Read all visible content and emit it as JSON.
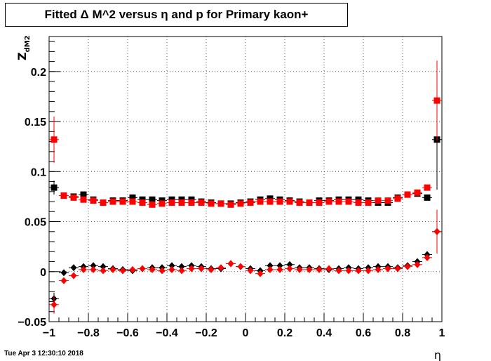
{
  "title": "Fitted Δ M^2 versus η and p for Primary kaon+",
  "timestamp": "Tue Apr  3 12:30:10 2018",
  "chart_data": {
    "type": "scatter",
    "title": "Fitted Δ M^2 versus η and p for Primary kaon+",
    "xlabel": "η",
    "ylabel": "Z_dM2",
    "xlim": [
      -1,
      1
    ],
    "ylim": [
      -0.05,
      0.235
    ],
    "grid": true,
    "x_ticks": [
      -1,
      -0.8,
      -0.6,
      -0.4,
      -0.2,
      0,
      0.2,
      0.4,
      0.6,
      0.8,
      1
    ],
    "x_tick_labels": [
      "−1",
      "−0.8",
      "−0.6",
      "−0.4",
      "−0.2",
      "0",
      "0.2",
      "0.4",
      "0.6",
      "0.8",
      "1"
    ],
    "y_ticks": [
      -0.05,
      0,
      0.05,
      0.1,
      0.15,
      0.2
    ],
    "y_tick_labels": [
      "−0.05",
      "0",
      "0.05",
      "0.1",
      "0.15",
      "0.2"
    ],
    "colors": {
      "black": "#000000",
      "red": "#ff0000"
    },
    "x": [
      -0.975,
      -0.925,
      -0.875,
      -0.825,
      -0.775,
      -0.725,
      -0.675,
      -0.625,
      -0.575,
      -0.525,
      -0.475,
      -0.425,
      -0.375,
      -0.325,
      -0.275,
      -0.225,
      -0.175,
      -0.125,
      -0.075,
      -0.025,
      0.025,
      0.075,
      0.125,
      0.175,
      0.225,
      0.275,
      0.325,
      0.375,
      0.425,
      0.475,
      0.525,
      0.575,
      0.625,
      0.675,
      0.725,
      0.775,
      0.825,
      0.875,
      0.925,
      0.975
    ],
    "series": [
      {
        "marker": "square",
        "color": "#000000",
        "values": [
          0.084,
          0.076,
          0.075,
          0.077,
          0.072,
          0.069,
          0.071,
          0.071,
          0.074,
          0.072,
          0.072,
          0.071,
          0.072,
          0.072,
          0.072,
          0.07,
          0.069,
          0.068,
          0.068,
          0.069,
          0.07,
          0.072,
          0.073,
          0.072,
          0.071,
          0.07,
          0.069,
          0.071,
          0.071,
          0.072,
          0.072,
          0.072,
          0.071,
          0.069,
          0.069,
          0.074,
          0.077,
          0.078,
          0.074,
          0.132
        ],
        "errors": [
          0.007,
          0.002,
          0.002,
          0.002,
          0.002,
          0.002,
          0.002,
          0.002,
          0.002,
          0.002,
          0.002,
          0.002,
          0.002,
          0.002,
          0.002,
          0.002,
          0.002,
          0.002,
          0.002,
          0.002,
          0.002,
          0.002,
          0.002,
          0.002,
          0.002,
          0.002,
          0.002,
          0.002,
          0.002,
          0.002,
          0.002,
          0.002,
          0.002,
          0.002,
          0.002,
          0.002,
          0.002,
          0.002,
          0.003,
          0.05
        ]
      },
      {
        "marker": "square",
        "color": "#ff0000",
        "values": [
          0.132,
          0.076,
          0.074,
          0.072,
          0.071,
          0.069,
          0.07,
          0.07,
          0.07,
          0.069,
          0.067,
          0.068,
          0.069,
          0.069,
          0.069,
          0.069,
          0.068,
          0.068,
          0.067,
          0.068,
          0.069,
          0.07,
          0.07,
          0.07,
          0.07,
          0.069,
          0.069,
          0.069,
          0.07,
          0.07,
          0.07,
          0.069,
          0.069,
          0.071,
          0.071,
          0.073,
          0.077,
          0.079,
          0.084,
          0.171
        ],
        "errors": [
          0.023,
          0.002,
          0.002,
          0.002,
          0.002,
          0.002,
          0.002,
          0.002,
          0.002,
          0.002,
          0.002,
          0.002,
          0.002,
          0.002,
          0.002,
          0.002,
          0.002,
          0.002,
          0.002,
          0.002,
          0.002,
          0.002,
          0.002,
          0.002,
          0.002,
          0.002,
          0.002,
          0.002,
          0.002,
          0.002,
          0.002,
          0.002,
          0.002,
          0.002,
          0.002,
          0.002,
          0.002,
          0.002,
          0.003,
          0.04
        ]
      },
      {
        "marker": "diamond",
        "color": "#000000",
        "values": [
          -0.027,
          -0.001,
          0.004,
          0.005,
          0.006,
          0.005,
          0.003,
          0.002,
          0.001,
          0.003,
          0.004,
          0.004,
          0.006,
          0.005,
          0.006,
          0.005,
          0.003,
          0.003,
          0.008,
          0.005,
          0.003,
          0.001,
          0.006,
          0.006,
          0.007,
          0.004,
          0.004,
          0.003,
          0.002,
          0.003,
          0.004,
          0.003,
          0.004,
          0.005,
          0.005,
          0.004,
          0.006,
          0.01,
          0.017,
          0.04
        ],
        "errors": [
          0.006,
          0.002,
          0.002,
          0.002,
          0.002,
          0.002,
          0.002,
          0.002,
          0.002,
          0.002,
          0.002,
          0.002,
          0.002,
          0.002,
          0.002,
          0.002,
          0.002,
          0.002,
          0.002,
          0.002,
          0.002,
          0.002,
          0.002,
          0.002,
          0.002,
          0.002,
          0.002,
          0.002,
          0.002,
          0.002,
          0.002,
          0.002,
          0.002,
          0.002,
          0.002,
          0.002,
          0.002,
          0.002,
          0.002,
          0.02
        ]
      },
      {
        "marker": "diamond",
        "color": "#ff0000",
        "values": [
          -0.033,
          -0.009,
          -0.004,
          0.002,
          0.002,
          0.001,
          0.002,
          0.001,
          0.002,
          0.003,
          0.002,
          0.001,
          0.002,
          0.001,
          0.003,
          0.003,
          0.002,
          0.004,
          0.008,
          0.005,
          0.001,
          -0.002,
          0.002,
          0.002,
          0.003,
          0.002,
          0.002,
          0.002,
          0.003,
          0.001,
          0.001,
          0.001,
          0.001,
          0.002,
          0.003,
          0.003,
          0.005,
          0.007,
          0.014,
          0.04
        ],
        "errors": [
          0.009,
          0.002,
          0.002,
          0.002,
          0.002,
          0.002,
          0.002,
          0.002,
          0.002,
          0.002,
          0.002,
          0.002,
          0.002,
          0.002,
          0.002,
          0.002,
          0.002,
          0.002,
          0.002,
          0.002,
          0.002,
          0.002,
          0.002,
          0.002,
          0.002,
          0.002,
          0.002,
          0.002,
          0.002,
          0.002,
          0.002,
          0.002,
          0.002,
          0.002,
          0.002,
          0.002,
          0.002,
          0.002,
          0.002,
          0.022
        ]
      }
    ]
  }
}
